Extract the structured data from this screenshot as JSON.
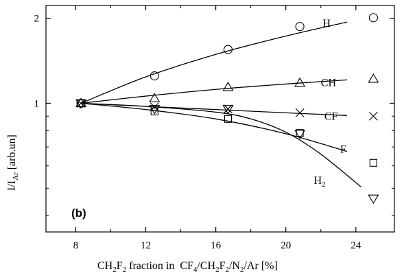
{
  "chart_data": {
    "type": "scatter",
    "panel_label": "(b)",
    "xlabel": {
      "a": "CH",
      "a_sub": "2",
      "b": "F",
      "b_sub": "2",
      "c": " fraction in  CF",
      "c_sub": "4",
      "d": "/CH",
      "d_sub": "2",
      "e": "F",
      "e_sub": "2",
      "f": "/N",
      "f_sub": "2",
      "g": "/Ar [%]"
    },
    "ylabel": {
      "a": "I/I",
      "a_sub": "Ar",
      "b": " [arb.un]"
    },
    "xlim": [
      6.3,
      26.2
    ],
    "ylim": [
      0.35,
      2.22
    ],
    "y_scale": "log",
    "xticks": [
      8,
      12,
      16,
      20,
      24
    ],
    "yticks": [
      1,
      2
    ],
    "series": [
      {
        "name": "H",
        "marker": "circle",
        "x": [
          8.3,
          12.5,
          16.7,
          20.8,
          25.0
        ],
        "y": [
          1.0,
          1.25,
          1.55,
          1.87,
          2.01
        ],
        "fit_x": [
          8.3,
          12,
          16,
          20,
          23.5
        ],
        "fit_y": [
          1.0,
          1.24,
          1.49,
          1.73,
          1.94
        ]
      },
      {
        "name": "CH",
        "marker": "triangle-up",
        "x": [
          8.3,
          12.5,
          16.7,
          20.8,
          25.0
        ],
        "y": [
          1.0,
          1.04,
          1.14,
          1.18,
          1.22
        ],
        "fit_x": [
          8.3,
          12,
          16,
          20,
          23.5
        ],
        "fit_y": [
          1.0,
          1.06,
          1.12,
          1.17,
          1.21
        ]
      },
      {
        "name": "CF",
        "marker": "x-cross",
        "x": [
          8.3,
          12.5,
          16.7,
          20.8,
          25.0
        ],
        "y": [
          1.0,
          0.97,
          0.955,
          0.925,
          0.9
        ],
        "fit_x": [
          8.3,
          12,
          16,
          20,
          23.5
        ],
        "fit_y": [
          1.0,
          0.975,
          0.95,
          0.925,
          0.905
        ]
      },
      {
        "name": "F",
        "marker": "square",
        "x": [
          8.3,
          12.5,
          16.7,
          20.8,
          25.0
        ],
        "y": [
          1.0,
          0.935,
          0.88,
          0.785,
          0.615
        ],
        "fit_x": [
          8.3,
          12,
          16,
          20,
          23.5
        ],
        "fit_y": [
          1.0,
          0.95,
          0.88,
          0.78,
          0.675
        ]
      },
      {
        "name": "H2",
        "marker": "triangle-down",
        "label": {
          "a": "H",
          "a_sub": "2"
        },
        "x": [
          8.3,
          12.5,
          16.7,
          20.8,
          25.0
        ],
        "y": [
          1.0,
          0.955,
          0.955,
          0.78,
          0.46
        ],
        "fit_x": [
          8.3,
          12,
          16,
          18,
          20,
          22,
          24.3
        ],
        "fit_y": [
          1.0,
          0.975,
          0.93,
          0.88,
          0.79,
          0.66,
          0.505
        ]
      }
    ]
  }
}
